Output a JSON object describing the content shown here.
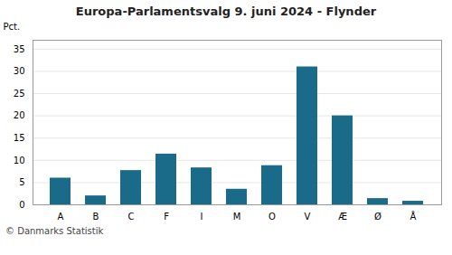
{
  "chart_data": {
    "type": "bar",
    "title": "Europa-Parlamentsvalg 9. juni 2024 - Flynder",
    "categories": [
      "A",
      "B",
      "C",
      "F",
      "I",
      "M",
      "O",
      "V",
      "Æ",
      "Ø",
      "Å"
    ],
    "values": [
      6.0,
      2.0,
      7.7,
      11.4,
      8.3,
      3.5,
      8.8,
      31.0,
      20.0,
      1.4,
      0.8
    ],
    "color": "#1a6b8a",
    "ylabel": "Pct.",
    "ylim": [
      0,
      37
    ],
    "yticks": [
      0,
      5,
      10,
      15,
      20,
      25,
      30,
      35
    ],
    "grid": true,
    "caption": "© Danmarks Statistik"
  }
}
